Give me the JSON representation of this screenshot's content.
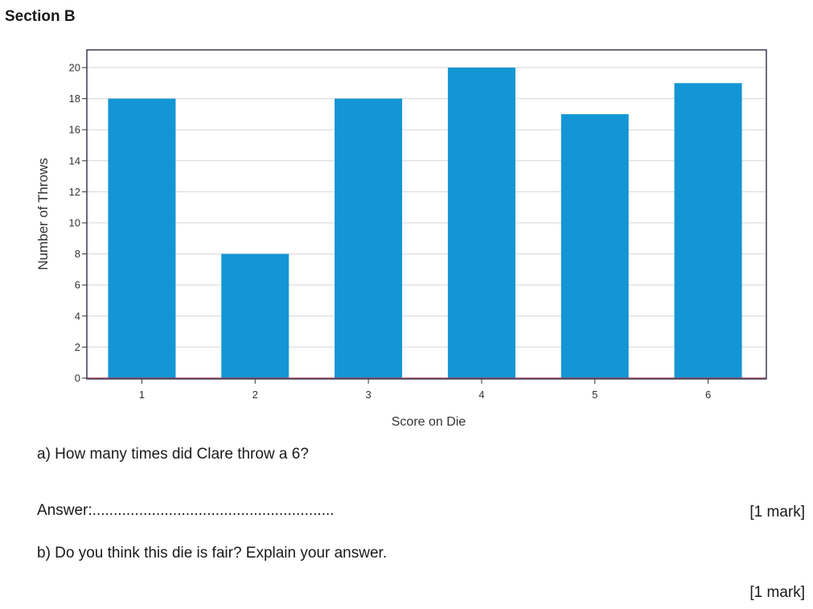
{
  "header": {
    "section_title": "Section B"
  },
  "chart_data": {
    "type": "bar",
    "categories": [
      "1",
      "2",
      "3",
      "4",
      "5",
      "6"
    ],
    "values": [
      18,
      8,
      18,
      20,
      17,
      19
    ],
    "title": "",
    "xlabel": "Score on Die",
    "ylabel": "Number of Throws",
    "ylim": [
      0,
      20
    ],
    "yticks": [
      0,
      2,
      4,
      6,
      8,
      10,
      12,
      14,
      16,
      18,
      20
    ],
    "grid": true,
    "legend": "none",
    "bar_color": "#1496d5"
  },
  "questions": {
    "a_text": "a)  How many times did Clare throw a 6?",
    "answer_label": "Answer:.........................................................",
    "a_marks": "[1 mark]",
    "b_text": "b) Do you think this die is fair?  Explain your answer.",
    "b_marks": "[1 mark]"
  }
}
